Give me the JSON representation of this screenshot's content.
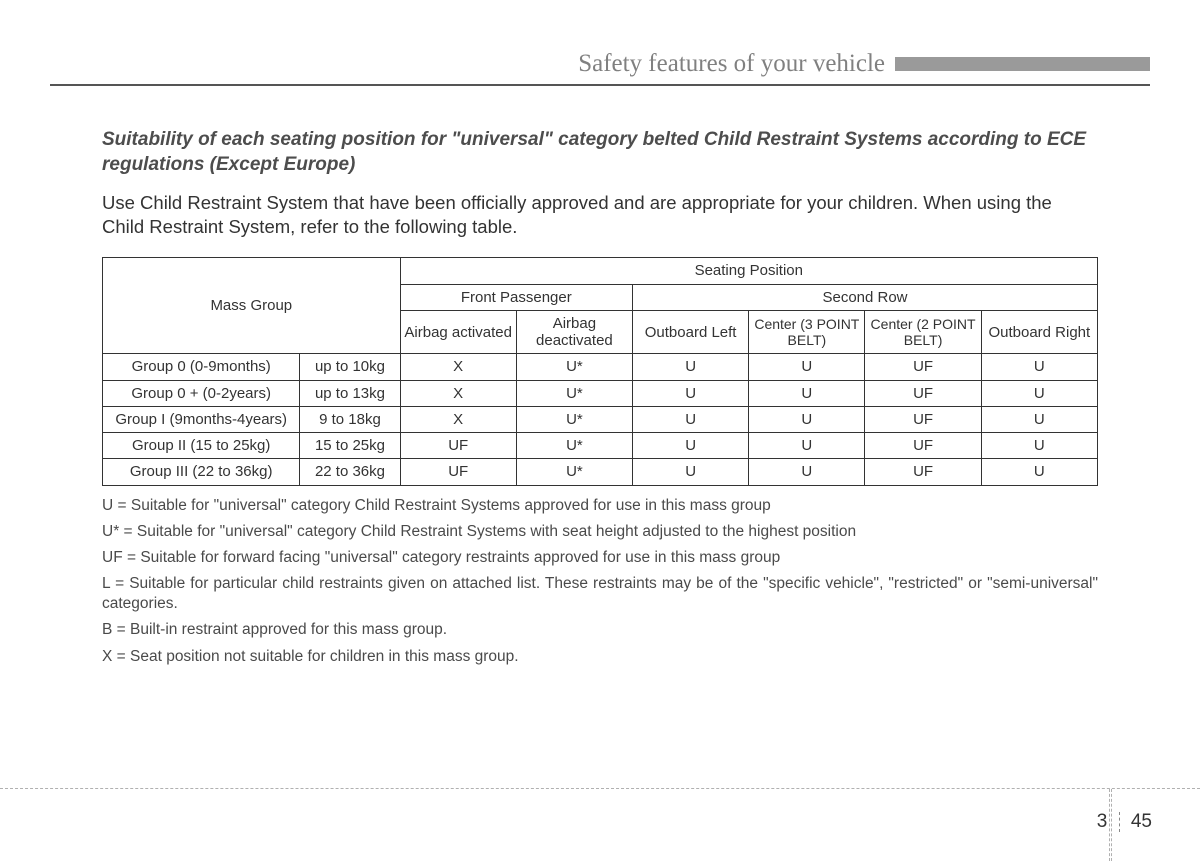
{
  "header": {
    "title": "Safety features of your vehicle"
  },
  "section": {
    "title": "Suitability of each seating position for \"universal\" category belted Child Restraint Systems according to ECE regulations (Except Europe)",
    "intro": "Use Child Restraint System that have been officially approved and are appropriate for your children. When using the Child Restraint System, refer to the following table."
  },
  "table": {
    "header": {
      "mass_group": "Mass Group",
      "seating_position": "Seating Position",
      "front_passenger": "Front Passenger",
      "second_row": "Second Row",
      "cols": {
        "airbag_activated": "Airbag activated",
        "airbag_deactivated": "Airbag deactivated",
        "outboard_left": "Outboard Left",
        "center_3pt": "Center (3 POINT BELT)",
        "center_2pt": "Center (2 POINT BELT)",
        "outboard_right": "Outboard Right"
      }
    },
    "rows": [
      {
        "group": "Group 0 (0-9months)",
        "mass": "up to 10kg",
        "c": [
          "X",
          "U*",
          "U",
          "U",
          "UF",
          "U"
        ]
      },
      {
        "group": "Group 0 + (0-2years)",
        "mass": "up to 13kg",
        "c": [
          "X",
          "U*",
          "U",
          "U",
          "UF",
          "U"
        ]
      },
      {
        "group": "Group I (9months-4years)",
        "mass": "9 to 18kg",
        "c": [
          "X",
          "U*",
          "U",
          "U",
          "UF",
          "U"
        ]
      },
      {
        "group": "Group II (15 to 25kg)",
        "mass": "15 to 25kg",
        "c": [
          "UF",
          "U*",
          "U",
          "U",
          "UF",
          "U"
        ]
      },
      {
        "group": "Group III (22 to 36kg)",
        "mass": "22 to 36kg",
        "c": [
          "UF",
          "U*",
          "U",
          "U",
          "UF",
          "U"
        ]
      }
    ]
  },
  "notes": [
    "U = Suitable for \"universal\" category Child Restraint Systems approved for use in this mass group",
    "U* = Suitable for \"universal\" category Child Restraint Systems with seat height adjusted to the highest position",
    "UF = Suitable for forward facing \"universal\" category restraints approved for use in this mass group",
    "L = Suitable for particular child restraints given on attached list. These restraints may be of the \"specific vehicle\", \"restricted\" or \"semi-universal\" categories.",
    "B = Built-in restraint approved for this mass group.",
    "X = Seat position not suitable for children in this mass group."
  ],
  "footer": {
    "chapter": "3",
    "page": "45"
  }
}
